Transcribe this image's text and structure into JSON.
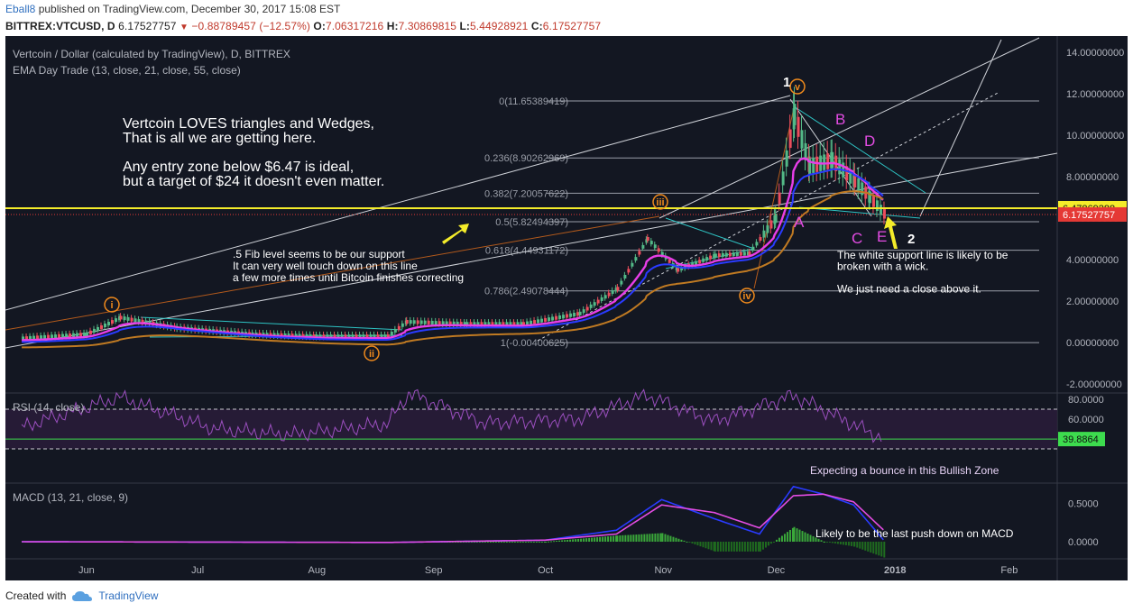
{
  "header": {
    "author": "Eball8",
    "published": "published on TradingView.com, December 30, 2017 15:08 EST",
    "symbol": "BITTREX:VTCUSD, D",
    "last": "6.17527757",
    "change": "−0.88789457 (−12.57%)",
    "o_label": "O:",
    "o": "7.06317216",
    "h_label": "H:",
    "h": "7.30869815",
    "l_label": "L:",
    "l": "5.44928921",
    "c_label": "C:",
    "c": "6.17527757"
  },
  "legend": {
    "title": "Vertcoin / Dollar (calculated by TradingView), D, BITTREX",
    "ema": "EMA Day Trade (13, close, 21, close, 55, close)",
    "rsi": "RSI (14, close)",
    "macd": "MACD (13, 21, close, 9)"
  },
  "annotations": {
    "main_text": [
      "Vertcoin LOVES triangles and Wedges,",
      "That is all we are getting here.",
      "",
      "Any entry zone below $6.47 is ideal,",
      "but a target of $24 it doesn't even matter."
    ],
    "fib_note": [
      ".5 Fib level seems to be our support",
      "It can very well touch down on this line",
      "a few more times until Bitcoin finishes correcting"
    ],
    "support_note": [
      "The white support line is likely to be",
      "broken with a wick.",
      "",
      "We just need a close above it."
    ],
    "rsi_note": "Expecting a bounce in this Bullish Zone",
    "macd_note": "Likely to be the last push down on MACD",
    "waves": [
      "i",
      "ii",
      "iii",
      "iv",
      "v"
    ],
    "wave_1_label": "1",
    "wave_2_label": "2",
    "abcde": [
      "A",
      "B",
      "C",
      "D",
      "E"
    ]
  },
  "footer": {
    "created": "Created with",
    "brand": "TradingView"
  },
  "colors": {
    "bg": "#131722",
    "price_line": "#e53935",
    "yellow": "#f4ec2a",
    "ema13": "#e83ee8",
    "ema21": "#2a3bff",
    "ema55": "#c07a22",
    "orange": "#f08a1c",
    "magenta": "#e34ce3",
    "cyan": "#2ec4c4"
  },
  "chart_data": {
    "type": "line",
    "title": "Vertcoin / Dollar (calculated by TradingView), D, BITTREX",
    "x_ticks": [
      "Jun",
      "Jul",
      "Aug",
      "Sep",
      "Oct",
      "Nov",
      "Dec",
      "2018",
      "Feb"
    ],
    "y_ticks": [
      "14.00000000",
      "12.00000000",
      "10.00000000",
      "8.00000000",
      "6.00000000",
      "4.00000000",
      "2.00000000",
      "0.00000000",
      "-2.00000000"
    ],
    "ylim": [
      -2.5,
      14.3
    ],
    "price_labels": [
      {
        "value": 6.47869288,
        "text": "6.47869288",
        "color": "#f4ec2a"
      },
      {
        "value": 6.17527757,
        "text": "6.17527757",
        "color": "#e53935"
      }
    ],
    "fib_levels": [
      {
        "label": "0(11.65389419)",
        "value": 11.65389419
      },
      {
        "label": "0.236(8.90262969)",
        "value": 8.90262969
      },
      {
        "label": "0.382(7.20057622)",
        "value": 7.20057622
      },
      {
        "label": "0.5(5.82494397)",
        "value": 5.82494397
      },
      {
        "label": "0.618(4.44931172)",
        "value": 4.44931172
      },
      {
        "label": "0.786(2.49078444)",
        "value": 2.49078444
      },
      {
        "label": "1(-0.00400625)",
        "value": -0.00400625
      }
    ],
    "price_series": {
      "name": "VTCUSD",
      "x": [
        "2017-05-15",
        "2017-06-01",
        "2017-06-10",
        "2017-06-25",
        "2017-07-15",
        "2017-08-01",
        "2017-08-20",
        "2017-08-25",
        "2017-09-10",
        "2017-09-25",
        "2017-10-10",
        "2017-10-20",
        "2017-10-28",
        "2017-11-05",
        "2017-11-15",
        "2017-11-24",
        "2017-12-01",
        "2017-12-06",
        "2017-12-10",
        "2017-12-16",
        "2017-12-22",
        "2017-12-26",
        "2017-12-30"
      ],
      "y": [
        0.2,
        0.4,
        1.2,
        0.7,
        0.4,
        0.3,
        0.3,
        1.0,
        0.9,
        0.9,
        1.4,
        2.6,
        5.0,
        3.5,
        4.2,
        4.3,
        6.0,
        11.0,
        8.5,
        8.8,
        7.8,
        7.0,
        6.17
      ]
    },
    "rsi": {
      "ylim": [
        20,
        92
      ],
      "ticks": [
        "80.0000",
        "60.0000"
      ],
      "current": "39.8864",
      "bands": [
        70,
        30
      ],
      "x": [
        "2017-05-15",
        "2017-06-10",
        "2017-07-05",
        "2017-07-25",
        "2017-08-20",
        "2017-08-26",
        "2017-09-15",
        "2017-10-10",
        "2017-10-28",
        "2017-11-15",
        "2017-12-06",
        "2017-12-20",
        "2017-12-30"
      ],
      "y": [
        52,
        82,
        50,
        44,
        55,
        86,
        56,
        60,
        84,
        58,
        84,
        58,
        40
      ]
    },
    "macd": {
      "ylim": [
        -0.26,
        0.78
      ],
      "ticks": [
        "0.5000",
        "0.0000"
      ],
      "x": [
        "2017-05-15",
        "2017-08-20",
        "2017-10-01",
        "2017-10-20",
        "2017-11-01",
        "2017-11-15",
        "2017-11-27",
        "2017-12-06",
        "2017-12-14",
        "2017-12-22",
        "2017-12-30"
      ],
      "macd": [
        0.0,
        -0.01,
        0.02,
        0.15,
        0.55,
        0.3,
        0.1,
        0.72,
        0.62,
        0.48,
        0.02
      ],
      "signal": [
        0.0,
        -0.01,
        0.02,
        0.1,
        0.48,
        0.38,
        0.18,
        0.6,
        0.62,
        0.52,
        0.15
      ]
    }
  }
}
